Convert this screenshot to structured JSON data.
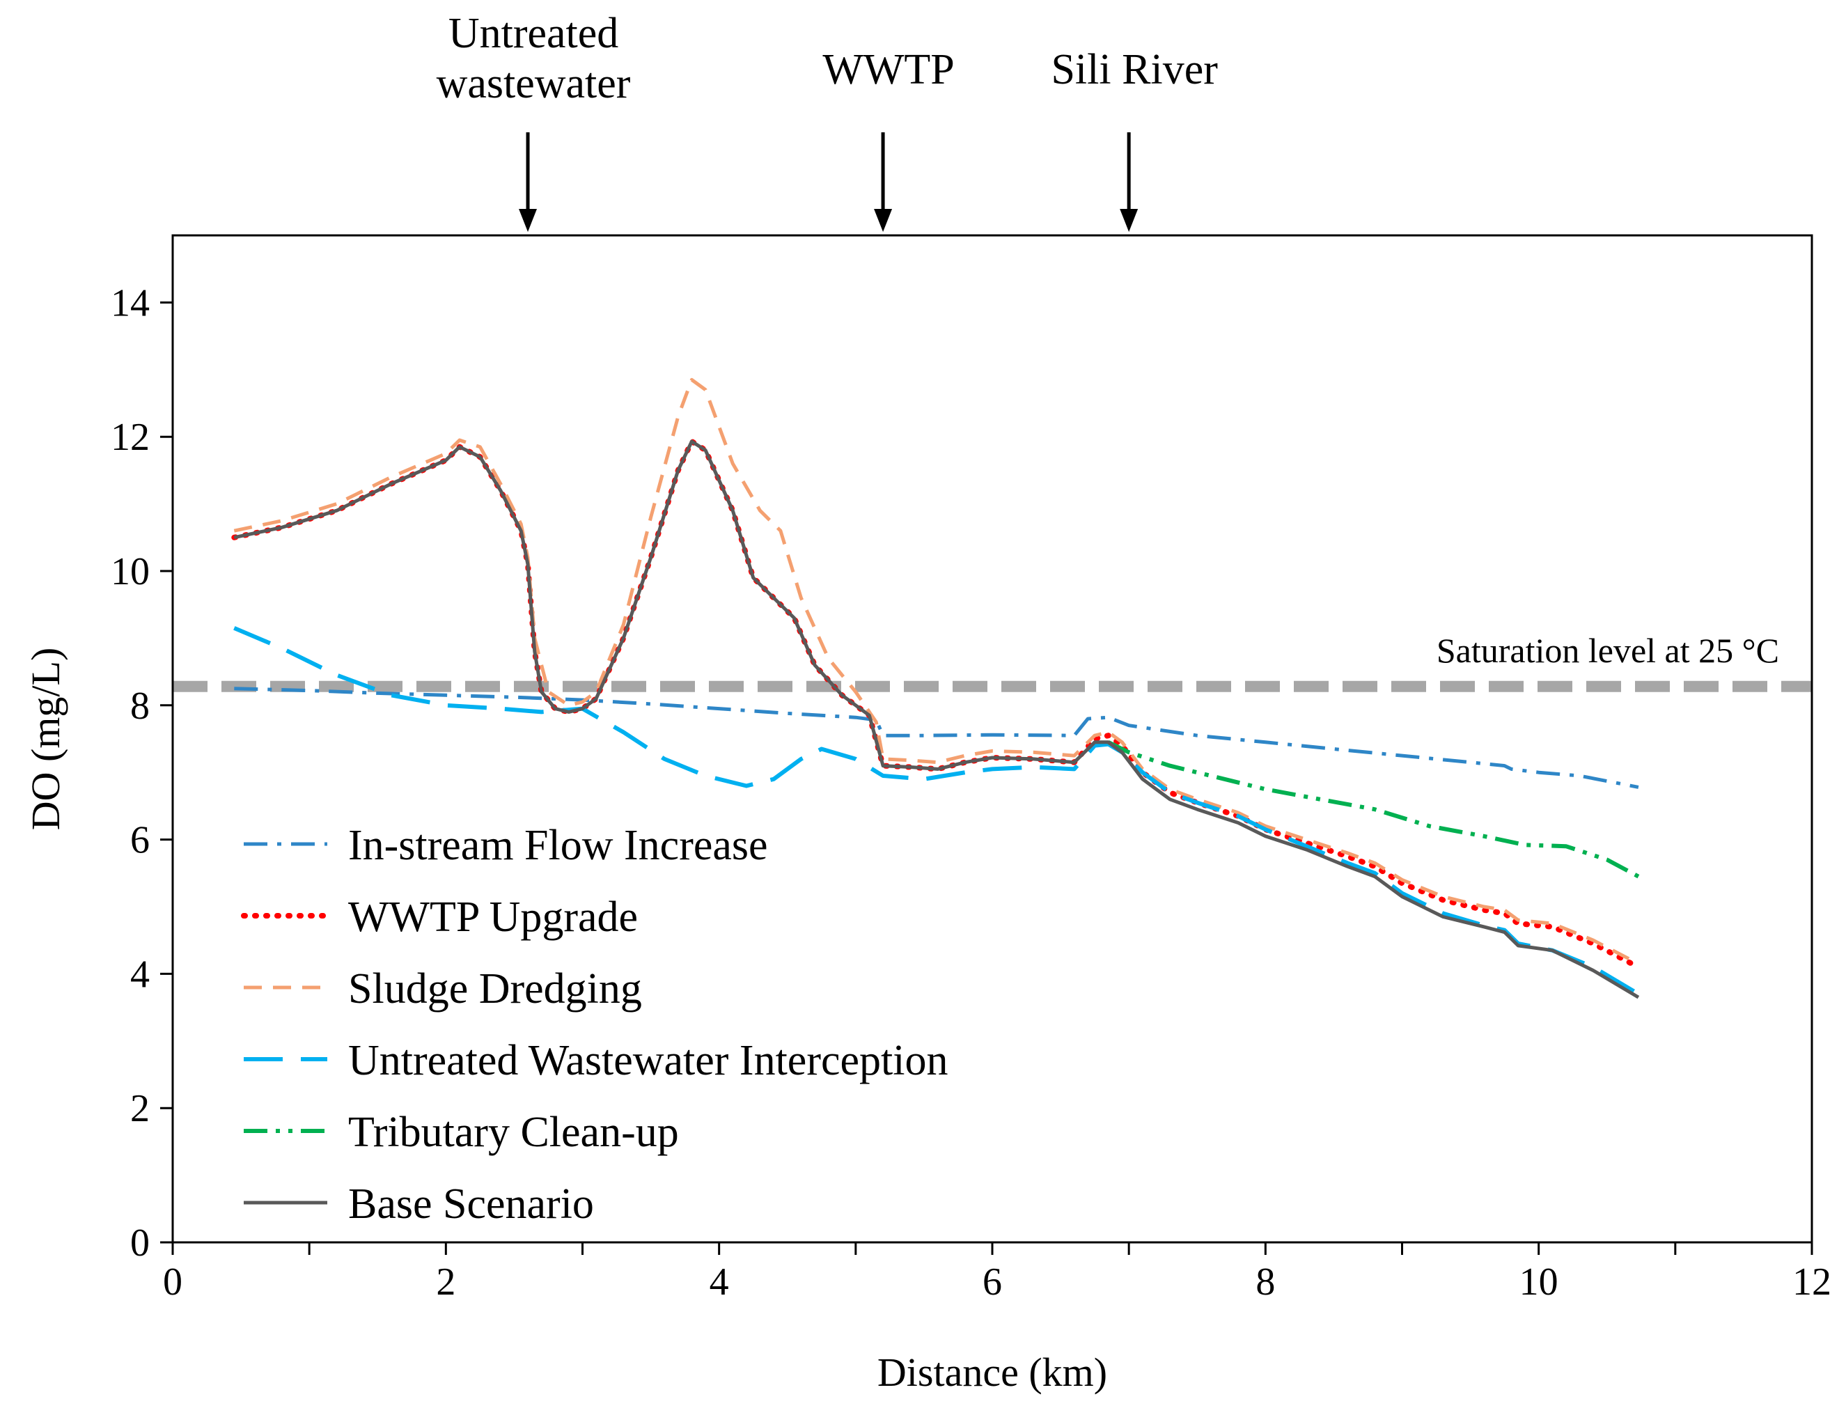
{
  "chart_data": {
    "type": "line",
    "xlabel": "Distance (km)",
    "ylabel": "DO  (mg/L)",
    "xlim": [
      0,
      12
    ],
    "ylim": [
      0,
      15
    ],
    "xticks": [
      0,
      2,
      4,
      6,
      8,
      10,
      12
    ],
    "yticks": [
      0,
      2,
      4,
      6,
      8,
      10,
      12,
      14
    ],
    "grid": false,
    "legend_position": "bottom-left",
    "saturation": {
      "label": "Saturation level  at 25 °C",
      "value": 8.28,
      "color": "#a6a6a6"
    },
    "annotations": [
      {
        "lines": [
          "Untreated",
          "wastewater"
        ],
        "x": 2.6
      },
      {
        "lines": [
          "WWTP"
        ],
        "x": 5.2
      },
      {
        "lines": [
          "Sili River"
        ],
        "x": 7.0
      }
    ],
    "series": [
      {
        "name": "In-stream Flow Increase",
        "color": "#2e86c7",
        "dash": "dashdot",
        "points": [
          [
            0.45,
            8.25
          ],
          [
            1.0,
            8.22
          ],
          [
            1.5,
            8.18
          ],
          [
            2.0,
            8.15
          ],
          [
            2.5,
            8.12
          ],
          [
            3.0,
            8.08
          ],
          [
            3.5,
            8.02
          ],
          [
            4.0,
            7.95
          ],
          [
            4.5,
            7.88
          ],
          [
            5.0,
            7.82
          ],
          [
            5.15,
            7.78
          ],
          [
            5.2,
            7.55
          ],
          [
            5.5,
            7.55
          ],
          [
            6.0,
            7.56
          ],
          [
            6.6,
            7.55
          ],
          [
            6.7,
            7.8
          ],
          [
            6.85,
            7.82
          ],
          [
            7.0,
            7.7
          ],
          [
            7.5,
            7.55
          ],
          [
            8.0,
            7.45
          ],
          [
            8.5,
            7.35
          ],
          [
            9.0,
            7.25
          ],
          [
            9.5,
            7.15
          ],
          [
            9.75,
            7.1
          ],
          [
            9.8,
            7.05
          ],
          [
            10.0,
            7.0
          ],
          [
            10.3,
            6.95
          ],
          [
            10.73,
            6.78
          ]
        ]
      },
      {
        "name": "WWTP Upgrade",
        "color": "#ff0000",
        "dash": "dot",
        "points": [
          [
            0.45,
            10.5
          ],
          [
            0.8,
            10.65
          ],
          [
            1.2,
            10.9
          ],
          [
            1.6,
            11.3
          ],
          [
            2.0,
            11.65
          ],
          [
            2.1,
            11.85
          ],
          [
            2.25,
            11.7
          ],
          [
            2.4,
            11.2
          ],
          [
            2.55,
            10.6
          ],
          [
            2.6,
            10.1
          ],
          [
            2.65,
            8.8
          ],
          [
            2.7,
            8.2
          ],
          [
            2.8,
            7.95
          ],
          [
            2.9,
            7.9
          ],
          [
            3.0,
            7.95
          ],
          [
            3.1,
            8.1
          ],
          [
            3.3,
            9.0
          ],
          [
            3.5,
            10.2
          ],
          [
            3.7,
            11.5
          ],
          [
            3.8,
            11.93
          ],
          [
            3.9,
            11.8
          ],
          [
            4.1,
            10.9
          ],
          [
            4.25,
            9.9
          ],
          [
            4.4,
            9.6
          ],
          [
            4.55,
            9.3
          ],
          [
            4.7,
            8.6
          ],
          [
            4.9,
            8.15
          ],
          [
            5.1,
            7.85
          ],
          [
            5.2,
            7.1
          ],
          [
            5.4,
            7.08
          ],
          [
            5.6,
            7.05
          ],
          [
            5.8,
            7.15
          ],
          [
            6.0,
            7.22
          ],
          [
            6.3,
            7.2
          ],
          [
            6.6,
            7.15
          ],
          [
            6.75,
            7.5
          ],
          [
            6.85,
            7.55
          ],
          [
            6.95,
            7.4
          ],
          [
            7.1,
            7.0
          ],
          [
            7.3,
            6.7
          ],
          [
            7.5,
            6.55
          ],
          [
            7.8,
            6.35
          ],
          [
            8.0,
            6.15
          ],
          [
            8.3,
            5.95
          ],
          [
            8.6,
            5.75
          ],
          [
            8.8,
            5.6
          ],
          [
            9.0,
            5.35
          ],
          [
            9.3,
            5.1
          ],
          [
            9.6,
            4.95
          ],
          [
            9.75,
            4.9
          ],
          [
            9.85,
            4.75
          ],
          [
            10.1,
            4.7
          ],
          [
            10.4,
            4.45
          ],
          [
            10.73,
            4.1
          ]
        ]
      },
      {
        "name": "Sludge Dredging",
        "color": "#f4a070",
        "dash": "dash",
        "points": [
          [
            0.45,
            10.6
          ],
          [
            0.8,
            10.75
          ],
          [
            1.2,
            11.0
          ],
          [
            1.6,
            11.4
          ],
          [
            2.0,
            11.75
          ],
          [
            2.1,
            11.95
          ],
          [
            2.25,
            11.85
          ],
          [
            2.4,
            11.3
          ],
          [
            2.55,
            10.7
          ],
          [
            2.6,
            10.2
          ],
          [
            2.65,
            9.0
          ],
          [
            2.75,
            8.2
          ],
          [
            2.9,
            8.0
          ],
          [
            3.0,
            8.05
          ],
          [
            3.1,
            8.2
          ],
          [
            3.3,
            9.2
          ],
          [
            3.5,
            10.8
          ],
          [
            3.7,
            12.3
          ],
          [
            3.8,
            12.85
          ],
          [
            3.9,
            12.7
          ],
          [
            4.1,
            11.6
          ],
          [
            4.3,
            10.9
          ],
          [
            4.45,
            10.6
          ],
          [
            4.6,
            9.6
          ],
          [
            4.8,
            8.7
          ],
          [
            5.0,
            8.2
          ],
          [
            5.15,
            7.75
          ],
          [
            5.2,
            7.2
          ],
          [
            5.4,
            7.18
          ],
          [
            5.6,
            7.15
          ],
          [
            5.8,
            7.25
          ],
          [
            6.0,
            7.32
          ],
          [
            6.3,
            7.3
          ],
          [
            6.6,
            7.25
          ],
          [
            6.75,
            7.55
          ],
          [
            6.85,
            7.6
          ],
          [
            6.95,
            7.45
          ],
          [
            7.1,
            7.05
          ],
          [
            7.3,
            6.75
          ],
          [
            7.5,
            6.6
          ],
          [
            7.8,
            6.4
          ],
          [
            8.0,
            6.2
          ],
          [
            8.3,
            6.0
          ],
          [
            8.6,
            5.8
          ],
          [
            8.8,
            5.65
          ],
          [
            9.0,
            5.4
          ],
          [
            9.3,
            5.15
          ],
          [
            9.6,
            5.0
          ],
          [
            9.75,
            4.95
          ],
          [
            9.85,
            4.8
          ],
          [
            10.1,
            4.75
          ],
          [
            10.4,
            4.5
          ],
          [
            10.73,
            4.15
          ]
        ]
      },
      {
        "name": "Untreated Wastewater Interception",
        "color": "#00b0f0",
        "dash": "longdash",
        "points": [
          [
            0.45,
            9.15
          ],
          [
            0.8,
            8.85
          ],
          [
            1.2,
            8.45
          ],
          [
            1.6,
            8.15
          ],
          [
            2.0,
            8.0
          ],
          [
            2.4,
            7.95
          ],
          [
            2.7,
            7.9
          ],
          [
            3.0,
            7.95
          ],
          [
            3.3,
            7.6
          ],
          [
            3.6,
            7.2
          ],
          [
            3.9,
            6.95
          ],
          [
            4.2,
            6.8
          ],
          [
            4.4,
            6.9
          ],
          [
            4.6,
            7.2
          ],
          [
            4.75,
            7.35
          ],
          [
            5.0,
            7.2
          ],
          [
            5.2,
            6.95
          ],
          [
            5.5,
            6.9
          ],
          [
            5.8,
            7.0
          ],
          [
            6.0,
            7.05
          ],
          [
            6.3,
            7.08
          ],
          [
            6.6,
            7.05
          ],
          [
            6.75,
            7.4
          ],
          [
            6.85,
            7.42
          ],
          [
            6.95,
            7.3
          ],
          [
            7.1,
            7.0
          ],
          [
            7.3,
            6.7
          ],
          [
            7.5,
            6.55
          ],
          [
            7.8,
            6.35
          ],
          [
            8.0,
            6.15
          ],
          [
            8.3,
            5.9
          ],
          [
            8.6,
            5.65
          ],
          [
            8.8,
            5.5
          ],
          [
            9.0,
            5.2
          ],
          [
            9.3,
            4.9
          ],
          [
            9.6,
            4.72
          ],
          [
            9.75,
            4.65
          ],
          [
            9.85,
            4.45
          ],
          [
            10.1,
            4.35
          ],
          [
            10.4,
            4.1
          ],
          [
            10.73,
            3.7
          ]
        ]
      },
      {
        "name": "Tributary Clean-up",
        "color": "#00b050",
        "dash": "dashdotdot",
        "points": [
          [
            6.85,
            7.45
          ],
          [
            7.0,
            7.3
          ],
          [
            7.3,
            7.1
          ],
          [
            7.6,
            6.95
          ],
          [
            8.0,
            6.75
          ],
          [
            8.4,
            6.6
          ],
          [
            8.8,
            6.45
          ],
          [
            9.2,
            6.2
          ],
          [
            9.6,
            6.05
          ],
          [
            9.9,
            5.92
          ],
          [
            10.2,
            5.9
          ],
          [
            10.5,
            5.7
          ],
          [
            10.73,
            5.45
          ]
        ]
      },
      {
        "name": "Base Scenario",
        "color": "#595959",
        "dash": "solid",
        "points": [
          [
            0.45,
            10.5
          ],
          [
            0.8,
            10.65
          ],
          [
            1.2,
            10.9
          ],
          [
            1.6,
            11.3
          ],
          [
            2.0,
            11.65
          ],
          [
            2.1,
            11.85
          ],
          [
            2.25,
            11.7
          ],
          [
            2.4,
            11.2
          ],
          [
            2.55,
            10.6
          ],
          [
            2.6,
            10.1
          ],
          [
            2.65,
            8.8
          ],
          [
            2.7,
            8.2
          ],
          [
            2.8,
            7.95
          ],
          [
            2.9,
            7.9
          ],
          [
            3.0,
            7.95
          ],
          [
            3.1,
            8.1
          ],
          [
            3.3,
            9.0
          ],
          [
            3.5,
            10.2
          ],
          [
            3.7,
            11.5
          ],
          [
            3.8,
            11.93
          ],
          [
            3.9,
            11.8
          ],
          [
            4.1,
            10.9
          ],
          [
            4.25,
            9.9
          ],
          [
            4.4,
            9.6
          ],
          [
            4.55,
            9.3
          ],
          [
            4.7,
            8.6
          ],
          [
            4.9,
            8.15
          ],
          [
            5.1,
            7.85
          ],
          [
            5.2,
            7.1
          ],
          [
            5.4,
            7.08
          ],
          [
            5.6,
            7.05
          ],
          [
            5.8,
            7.15
          ],
          [
            6.0,
            7.22
          ],
          [
            6.3,
            7.2
          ],
          [
            6.6,
            7.15
          ],
          [
            6.75,
            7.45
          ],
          [
            6.85,
            7.45
          ],
          [
            6.95,
            7.3
          ],
          [
            7.1,
            6.9
          ],
          [
            7.3,
            6.6
          ],
          [
            7.5,
            6.45
          ],
          [
            7.8,
            6.25
          ],
          [
            8.0,
            6.05
          ],
          [
            8.3,
            5.85
          ],
          [
            8.6,
            5.6
          ],
          [
            8.8,
            5.45
          ],
          [
            9.0,
            5.15
          ],
          [
            9.3,
            4.85
          ],
          [
            9.6,
            4.7
          ],
          [
            9.75,
            4.62
          ],
          [
            9.85,
            4.42
          ],
          [
            10.1,
            4.35
          ],
          [
            10.4,
            4.05
          ],
          [
            10.73,
            3.65
          ]
        ]
      }
    ]
  }
}
